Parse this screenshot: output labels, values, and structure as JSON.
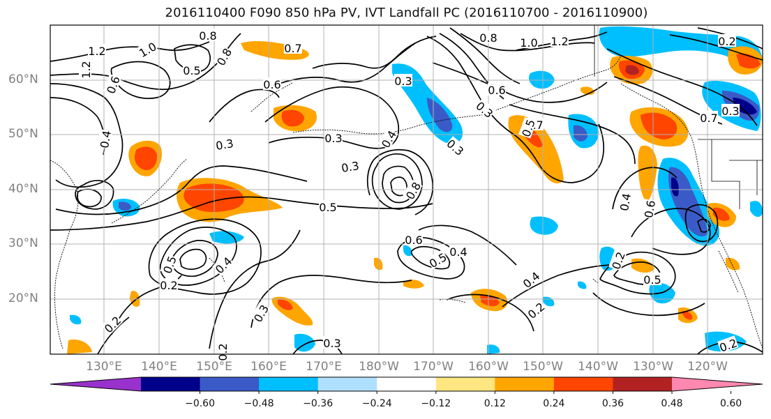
{
  "title": "2016110400 F090 850 hPa PV, IVT Landfall PC (2016110700 - 2016110900)",
  "lat_labels": [
    "60°N",
    "50°N",
    "40°N",
    "30°N",
    "20°N"
  ],
  "lon_labels": [
    "130°E",
    "140°E",
    "150°E",
    "160°E",
    "170°E",
    "180°W",
    "170°W",
    "160°W",
    "150°W",
    "140°W",
    "130°W",
    "120°W"
  ],
  "colorbar": {
    "ticks": [
      "−0.60",
      "−0.48",
      "−0.36",
      "−0.24",
      "−0.12",
      "0.12",
      "0.24",
      "0.36",
      "0.48",
      "0.60"
    ],
    "colors": [
      "#9932cc",
      "#00008b",
      "#3a5bc7",
      "#00bfff",
      "#b0e0ff",
      "#ffffff",
      "#ffe680",
      "#ffa500",
      "#ff4500",
      "#b22222",
      "#ff88b0"
    ]
  },
  "contour_labels": [
    "1.0",
    "0.8",
    "1.2",
    "1.2",
    "0.5",
    "0.8",
    "0.7",
    "0.6",
    "0.6",
    "0.4",
    "0.3",
    "0.2",
    "0.3",
    "0.3",
    "1.0",
    "1.2",
    "0.8",
    "0.6",
    "0.3",
    "0.7",
    "0.5",
    "0.4",
    "0.3",
    "0.8",
    "0.5",
    "0.6",
    "0.4",
    "0.2",
    "0.3",
    "0.4",
    "0.3",
    "0.5",
    "0.2",
    "0.2",
    "0.2",
    "0.3",
    "0.2",
    "0.5",
    "0.6",
    "0.4",
    "0.7",
    "0.2",
    "0.4",
    "0.5",
    "0.3"
  ]
}
